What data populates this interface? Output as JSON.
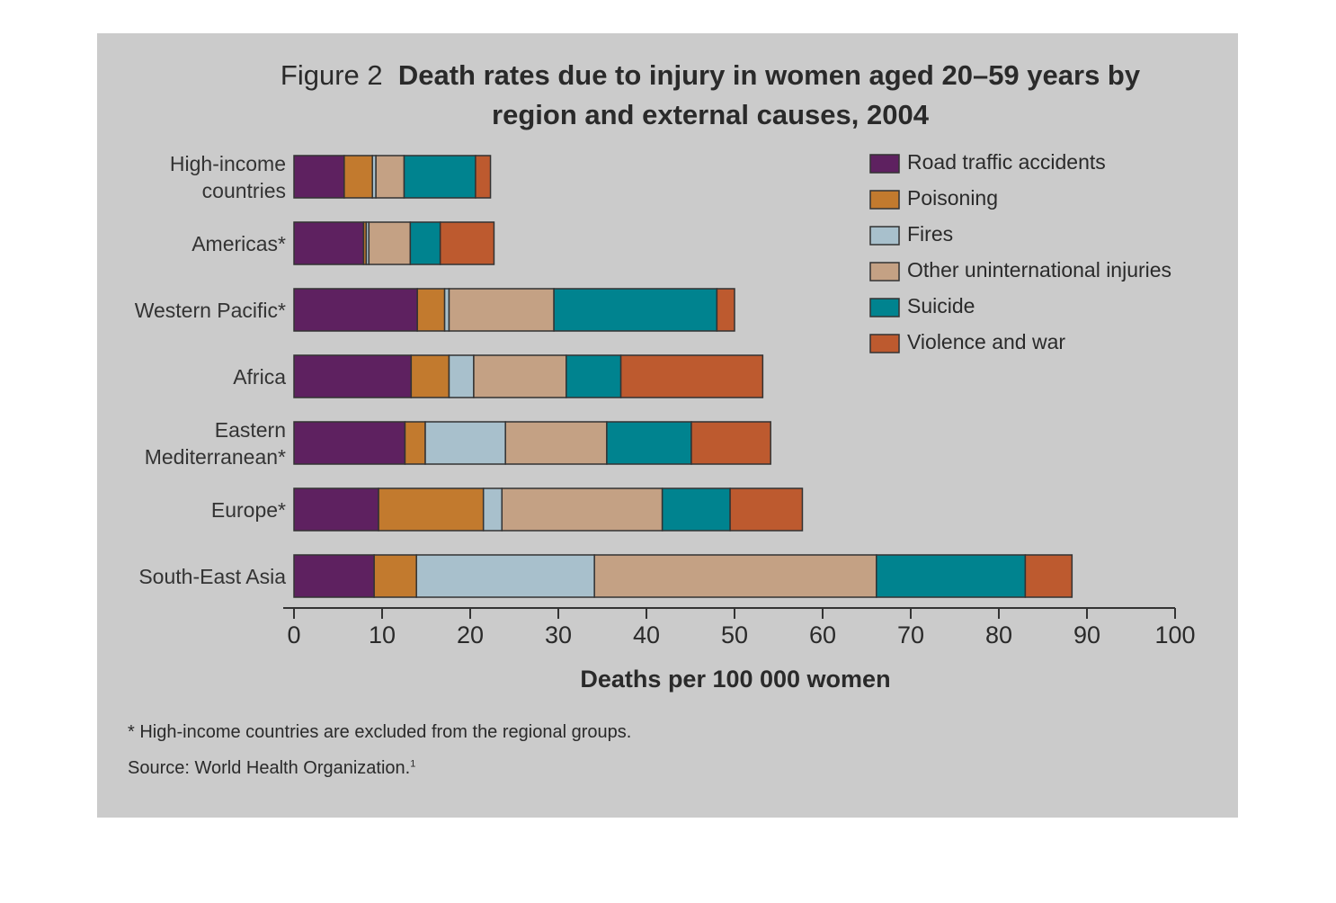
{
  "chart_data": {
    "type": "stacked_barh",
    "figure_label": "Figure 2",
    "title": "Death rates due to injury in women aged 20–59 years by region and external causes, 2004",
    "xlabel": "Deaths per 100 000 women",
    "footnote": "* High-income countries are excluded from the regional groups.",
    "source": "Source: World Health Organization.",
    "source_ref": "1",
    "categories": [
      "High-income countries",
      "Americas*",
      "Western Pacific*",
      "Africa",
      "Eastern Mediterranean*",
      "Europe*",
      "South-East Asia"
    ],
    "series": [
      {
        "name": "Road traffic accidents",
        "color": "#5e2160",
        "values": [
          5.7,
          7.9,
          14.0,
          13.3,
          12.6,
          9.6,
          9.1
        ]
      },
      {
        "name": "Poisoning",
        "color": "#c27a2e",
        "values": [
          3.2,
          0.3,
          3.1,
          4.3,
          2.3,
          11.9,
          4.8
        ]
      },
      {
        "name": "Fires",
        "color": "#a8c0cc",
        "values": [
          0.4,
          0.3,
          0.5,
          2.8,
          9.1,
          2.1,
          20.2
        ]
      },
      {
        "name": "Other uninternational injuries",
        "color": "#c4a184",
        "values": [
          3.2,
          4.7,
          11.9,
          10.5,
          11.5,
          18.2,
          32.0
        ]
      },
      {
        "name": "Suicide",
        "color": "#00838f",
        "values": [
          8.1,
          3.4,
          18.5,
          6.2,
          9.6,
          7.7,
          16.9
        ]
      },
      {
        "name": "Violence and war",
        "color": "#bd5a2f",
        "values": [
          1.7,
          6.1,
          2.0,
          16.1,
          9.0,
          8.2,
          5.3
        ]
      }
    ],
    "xlim": [
      0,
      100
    ],
    "xticks": [
      0,
      10,
      20,
      30,
      40,
      50,
      60,
      70,
      80,
      90,
      100
    ],
    "legend": "upper right"
  }
}
